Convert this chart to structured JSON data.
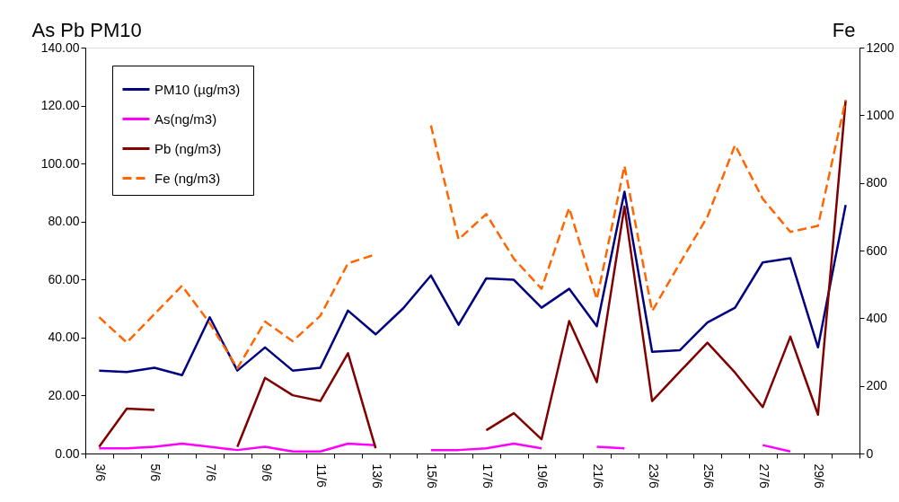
{
  "chart_data": {
    "type": "line",
    "ylabel": "As Pb PM10",
    "y2label": "Fe",
    "categories": [
      "3/6",
      null,
      "5/6",
      null,
      "7/6",
      null,
      "9/6",
      null,
      "11/6",
      null,
      "13/6",
      null,
      "15/6",
      null,
      "17/6",
      null,
      "19/6",
      null,
      "21/6",
      null,
      "23/6",
      null,
      "25/6",
      null,
      "27/6",
      null,
      "29/6",
      null
    ],
    "series": [
      {
        "name": "PM10  (µg/m3)",
        "color": "#000080",
        "values": [
          28.6,
          28.1,
          29.6,
          27.0,
          47.0,
          28.6,
          36.6,
          28.6,
          29.6,
          49.3,
          41.1,
          50.1,
          61.4,
          44.4,
          60.4,
          59.9,
          50.3,
          56.8,
          43.9,
          90.3,
          35.1,
          35.6,
          45.2,
          50.3,
          65.9,
          67.4,
          36.6,
          85.7
        ]
      },
      {
        "name": "As(ng/m3)",
        "color": "#ff00ff",
        "values": [
          1.8,
          1.8,
          2.3,
          3.4,
          2.3,
          1.2,
          2.3,
          0.7,
          0.7,
          3.4,
          2.9,
          null,
          1.2,
          1.2,
          1.8,
          3.4,
          1.8,
          null,
          2.3,
          1.8,
          null,
          null,
          null,
          null,
          2.9,
          0.7,
          null,
          null
        ]
      },
      {
        "name": "Pb (ng/m3)",
        "color": "#800000",
        "values": [
          2.3,
          15.5,
          15.0,
          null,
          null,
          2.3,
          26.1,
          20.1,
          18.1,
          34.6,
          1.8,
          null,
          null,
          null,
          8.0,
          13.9,
          4.9,
          45.7,
          24.6,
          85.2,
          18.1,
          28.2,
          38.2,
          27.9,
          16.0,
          40.3,
          13.4,
          121.8
        ]
      },
      {
        "name": "Fe (ng/m3)",
        "color": "#ff6600",
        "axis": "y2",
        "line_style": "dashed",
        "values": [
          403,
          328,
          412,
          496,
          385,
          252,
          390,
          332,
          407,
          562,
          589,
          null,
          970,
          633,
          708,
          576,
          487,
          726,
          456,
          850,
          421,
          562,
          700,
          912,
          753,
          655,
          673,
          1045
        ]
      }
    ],
    "ylim": [
      0,
      140
    ],
    "yticks": [
      {
        "value": 0,
        "label": "0.00"
      },
      {
        "value": 20,
        "label": "20.00"
      },
      {
        "value": 40,
        "label": "40.00"
      },
      {
        "value": 60,
        "label": "60.00"
      },
      {
        "value": 80,
        "label": "80.00"
      },
      {
        "value": 100,
        "label": "100.00"
      },
      {
        "value": 120,
        "label": "120.00"
      },
      {
        "value": 140,
        "label": "140.00"
      }
    ],
    "y2lim": [
      0,
      1200
    ],
    "y2ticks": [
      0,
      200,
      400,
      600,
      800,
      1000,
      1200
    ],
    "legend": "top left",
    "grid": false
  }
}
